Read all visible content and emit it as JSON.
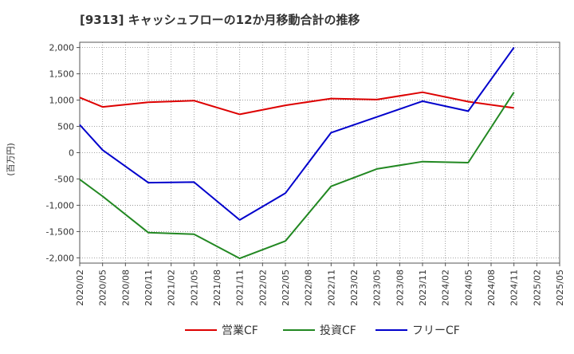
{
  "chart_data": {
    "type": "line",
    "title": "[9313]  キャッシュフローの12か月移動合計の推移",
    "ylabel": "(百万円)",
    "xlabel": "",
    "ylim": [
      -2100,
      2100
    ],
    "y_ticks": [
      2000,
      1500,
      1000,
      500,
      0,
      -500,
      -1000,
      -1500,
      -2000
    ],
    "y_tick_labels": [
      "2,000",
      "1,500",
      "1,000",
      "500",
      "0",
      "-500",
      "-1,000",
      "-1,500",
      "-2,000"
    ],
    "categories": [
      "2020/02",
      "2020/05",
      "2020/08",
      "2020/11",
      "2021/02",
      "2021/05",
      "2021/08",
      "2021/11",
      "2022/02",
      "2022/05",
      "2022/08",
      "2022/11",
      "2023/02",
      "2023/05",
      "2023/08",
      "2023/11",
      "2024/02",
      "2024/05",
      "2024/08",
      "2024/11",
      "2025/02",
      "2025/05"
    ],
    "grid": true,
    "legend_position": "bottom",
    "series": [
      {
        "name": "営業CF",
        "color": "#dd0000",
        "values": [
          1050,
          870,
          null,
          960,
          null,
          990,
          null,
          730,
          null,
          900,
          null,
          1030,
          null,
          1010,
          null,
          1150,
          null,
          970,
          null,
          850,
          null,
          null
        ]
      },
      {
        "name": "投資CF",
        "color": "#228822",
        "values": [
          -510,
          -830,
          null,
          -1520,
          null,
          -1550,
          null,
          -2010,
          null,
          -1680,
          null,
          -640,
          null,
          -310,
          null,
          -170,
          null,
          -190,
          null,
          1150,
          null,
          null
        ]
      },
      {
        "name": "フリーCF",
        "color": "#0000cc",
        "values": [
          530,
          50,
          null,
          -570,
          null,
          -560,
          null,
          -1280,
          null,
          -770,
          null,
          380,
          null,
          680,
          null,
          980,
          null,
          790,
          null,
          2000,
          null,
          null
        ]
      }
    ]
  }
}
